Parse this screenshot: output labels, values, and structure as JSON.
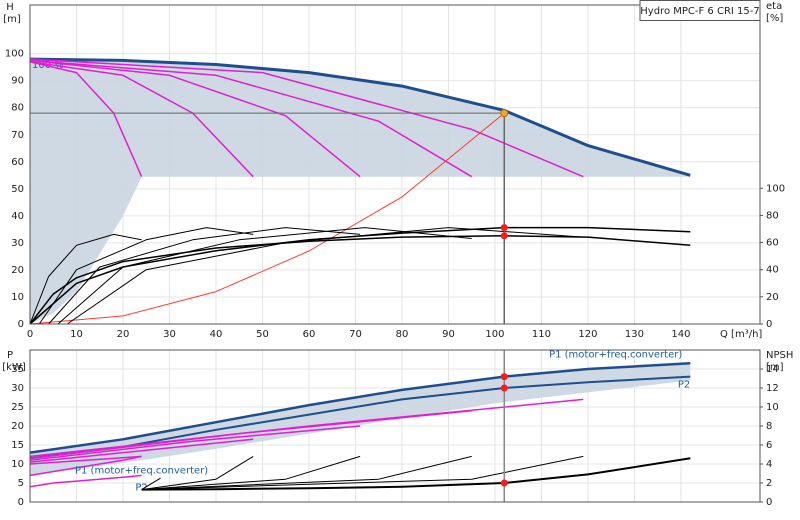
{
  "chart_data": [
    {
      "type": "line",
      "title": "Hydro MPC-F 6 CRI 15-7",
      "ylabel": "H",
      "yunit": "[m]",
      "y2label": "eta",
      "y2unit": "[%]",
      "xlabel": "Q [m³/h]",
      "xlim": [
        0,
        157
      ],
      "xticks": [
        0,
        10,
        20,
        30,
        40,
        50,
        60,
        70,
        80,
        90,
        100,
        110,
        120,
        130,
        140
      ],
      "ylim": [
        0,
        118
      ],
      "yticks": [
        0,
        10,
        20,
        30,
        40,
        50,
        60,
        70,
        80,
        90,
        100
      ],
      "y2lim": [
        0,
        235
      ],
      "y2ticks": [
        0,
        20,
        40,
        60,
        80,
        100
      ],
      "grid": true,
      "show_xtick_labels": true,
      "series": [
        {
          "kind": "area",
          "color": "#c9d5e1",
          "x": [
            0,
            20,
            40,
            60,
            80,
            102,
            120,
            142,
            142,
            24,
            20,
            10,
            5,
            0
          ],
          "values": [
            98,
            97.5,
            96,
            93,
            88,
            79,
            66,
            55,
            54.5,
            54.5,
            40,
            12,
            4,
            0
          ]
        },
        {
          "kind": "line",
          "name": "100 %",
          "color": "#1f4e8c",
          "width": 3,
          "x": [
            0,
            20,
            40,
            60,
            80,
            102,
            120,
            142
          ],
          "values": [
            98,
            97.5,
            96,
            93,
            88,
            79,
            66,
            55
          ]
        },
        {
          "kind": "line",
          "color": "#e020d0",
          "width": 1.5,
          "x": [
            0,
            10,
            18,
            24
          ],
          "values": [
            97,
            93,
            78,
            54.5
          ]
        },
        {
          "kind": "line",
          "color": "#e020d0",
          "width": 1.5,
          "x": [
            0,
            20,
            35,
            48
          ],
          "values": [
            97,
            92,
            78,
            54.5
          ]
        },
        {
          "kind": "line",
          "color": "#e020d0",
          "width": 1.5,
          "x": [
            0,
            30,
            55,
            71
          ],
          "values": [
            97.5,
            92,
            77,
            54.5
          ]
        },
        {
          "kind": "line",
          "color": "#e020d0",
          "width": 1.5,
          "x": [
            0,
            40,
            75,
            95
          ],
          "values": [
            97.5,
            92,
            75,
            54.5
          ]
        },
        {
          "kind": "line",
          "color": "#e020d0",
          "width": 1.5,
          "x": [
            0,
            50,
            95,
            119
          ],
          "values": [
            98,
            93,
            72,
            54.5
          ]
        },
        {
          "kind": "line",
          "color": "#ff3b2f",
          "width": 1,
          "x": [
            0,
            20,
            40,
            60,
            80,
            102
          ],
          "values": [
            0,
            3,
            12,
            27,
            47,
            78
          ]
        },
        {
          "kind": "line",
          "axis": "y2",
          "color": "#000000",
          "width": 1.5,
          "x": [
            0,
            5,
            10,
            20,
            40,
            60,
            80,
            102,
            120,
            142
          ],
          "values": [
            0,
            22,
            34,
            46,
            56,
            61,
            64,
            65,
            64,
            58
          ]
        },
        {
          "kind": "line",
          "axis": "y2",
          "color": "#000000",
          "width": 1.5,
          "x": [
            0,
            10,
            20,
            40,
            60,
            80,
            102,
            120,
            142
          ],
          "values": [
            0,
            30,
            42,
            54,
            62,
            67,
            71,
            71,
            68
          ]
        },
        {
          "kind": "line",
          "axis": "y2",
          "color": "#000000",
          "width": 1,
          "x": [
            0,
            4,
            10,
            18,
            24
          ],
          "values": [
            0,
            35,
            58,
            66,
            62
          ]
        },
        {
          "kind": "line",
          "axis": "y2",
          "color": "#000000",
          "width": 1,
          "x": [
            2,
            10,
            25,
            38,
            48
          ],
          "values": [
            0,
            40,
            62,
            71,
            66
          ]
        },
        {
          "kind": "line",
          "axis": "y2",
          "color": "#000000",
          "width": 1,
          "x": [
            4,
            15,
            35,
            55,
            71
          ],
          "values": [
            0,
            42,
            62,
            71,
            66
          ]
        },
        {
          "kind": "line",
          "axis": "y2",
          "color": "#000000",
          "width": 1,
          "x": [
            6,
            20,
            45,
            72,
            95
          ],
          "values": [
            0,
            42,
            62,
            71,
            63
          ]
        },
        {
          "kind": "line",
          "axis": "y2",
          "color": "#000000",
          "width": 1,
          "x": [
            8,
            25,
            55,
            90,
            119
          ],
          "values": [
            0,
            40,
            60,
            71,
            64
          ]
        },
        {
          "kind": "points",
          "color": "#f5a623",
          "crosshair": "xy",
          "x": [
            102
          ],
          "values": [
            78
          ]
        },
        {
          "kind": "points",
          "axis": "y2",
          "color": "#ff1a1a",
          "x": [
            102,
            102
          ],
          "values": [
            71,
            65
          ]
        }
      ]
    },
    {
      "type": "line",
      "ylabel": "P",
      "yunit": "[kW]",
      "y2label": "NPSH",
      "y2unit": "[m]",
      "xlim": [
        0,
        157
      ],
      "xticks": [
        0,
        10,
        20,
        30,
        40,
        50,
        60,
        70,
        80,
        90,
        100,
        110,
        120,
        130,
        140
      ],
      "ylim": [
        0,
        40
      ],
      "yticks": [
        0,
        5,
        10,
        15,
        20,
        25,
        30,
        35
      ],
      "y2lim": [
        0,
        16
      ],
      "y2ticks": [
        0,
        2,
        4,
        6,
        8,
        10,
        12,
        14
      ],
      "grid": true,
      "show_xtick_labels": false,
      "series": [
        {
          "kind": "area",
          "color": "#c9d5e1",
          "x": [
            0,
            20,
            40,
            60,
            80,
            102,
            120,
            142,
            142,
            100,
            70,
            40,
            24,
            0
          ],
          "values": [
            13,
            16.5,
            21,
            25.5,
            29.5,
            33,
            35,
            36.5,
            32,
            26,
            20,
            14,
            11,
            7
          ]
        },
        {
          "kind": "line",
          "name": "P1 (motor+freq.converter)",
          "color": "#1f4e8c",
          "width": 2.5,
          "x": [
            0,
            20,
            40,
            60,
            80,
            102,
            120,
            142
          ],
          "values": [
            13,
            16.5,
            21,
            25.5,
            29.5,
            33,
            35,
            36.5
          ]
        },
        {
          "kind": "line",
          "name": "P2",
          "color": "#1f4e8c",
          "width": 2,
          "x": [
            0,
            20,
            40,
            60,
            80,
            102,
            120,
            142
          ],
          "values": [
            11.5,
            14.5,
            19,
            23,
            27,
            30,
            31.5,
            33
          ]
        },
        {
          "kind": "line",
          "color": "#e020d0",
          "width": 1.5,
          "x": [
            0,
            12,
            24
          ],
          "values": [
            10,
            11,
            12
          ]
        },
        {
          "kind": "line",
          "color": "#e020d0",
          "width": 1.5,
          "x": [
            0,
            24,
            48
          ],
          "values": [
            10.5,
            13.5,
            16.5
          ]
        },
        {
          "kind": "line",
          "color": "#e020d0",
          "width": 1.5,
          "x": [
            0,
            35,
            71
          ],
          "values": [
            11,
            16,
            20
          ]
        },
        {
          "kind": "line",
          "color": "#e020d0",
          "width": 1.5,
          "x": [
            0,
            45,
            95
          ],
          "values": [
            11.5,
            18,
            24
          ]
        },
        {
          "kind": "line",
          "color": "#e020d0",
          "width": 1.5,
          "x": [
            0,
            60,
            119
          ],
          "values": [
            12,
            20,
            27
          ]
        },
        {
          "kind": "line",
          "name": "P1 (motor+freq.converter)",
          "color": "#e020d0",
          "width": 1.5,
          "x": [
            0,
            10,
            20,
            24
          ],
          "values": [
            7,
            9,
            11,
            12
          ]
        },
        {
          "kind": "line",
          "name": "P2",
          "color": "#e020d0",
          "width": 1.5,
          "x": [
            0,
            5,
            10,
            20,
            24
          ],
          "values": [
            4,
            5,
            5.5,
            6.5,
            7
          ]
        },
        {
          "kind": "line",
          "axis": "y2",
          "color": "#000000",
          "width": 2,
          "x": [
            24,
            40,
            60,
            80,
            102,
            120,
            142
          ],
          "values": [
            1.3,
            1.35,
            1.45,
            1.6,
            2.0,
            2.9,
            4.6
          ]
        },
        {
          "kind": "line",
          "axis": "y2",
          "color": "#000000",
          "width": 1,
          "x": [
            24,
            28,
            24
          ],
          "values": [
            1.3,
            2.5,
            1.3
          ]
        },
        {
          "kind": "line",
          "axis": "y2",
          "color": "#000000",
          "width": 1,
          "x": [
            24,
            40,
            48
          ],
          "values": [
            1.3,
            2.4,
            4.8
          ]
        },
        {
          "kind": "line",
          "axis": "y2",
          "color": "#000000",
          "width": 1,
          "x": [
            24,
            55,
            71
          ],
          "values": [
            1.3,
            2.4,
            4.8
          ]
        },
        {
          "kind": "line",
          "axis": "y2",
          "color": "#000000",
          "width": 1,
          "x": [
            24,
            75,
            95
          ],
          "values": [
            1.3,
            2.4,
            4.8
          ]
        },
        {
          "kind": "line",
          "axis": "y2",
          "color": "#000000",
          "width": 1,
          "x": [
            24,
            95,
            119
          ],
          "values": [
            1.3,
            2.4,
            4.8
          ]
        },
        {
          "kind": "points",
          "color": "#ff1a1a",
          "crosshair": "x",
          "x": [
            102,
            102
          ],
          "values": [
            33,
            30
          ]
        },
        {
          "kind": "points",
          "axis": "y2",
          "color": "#ff1a1a",
          "x": [
            102
          ],
          "values": [
            2.0
          ]
        }
      ]
    }
  ]
}
